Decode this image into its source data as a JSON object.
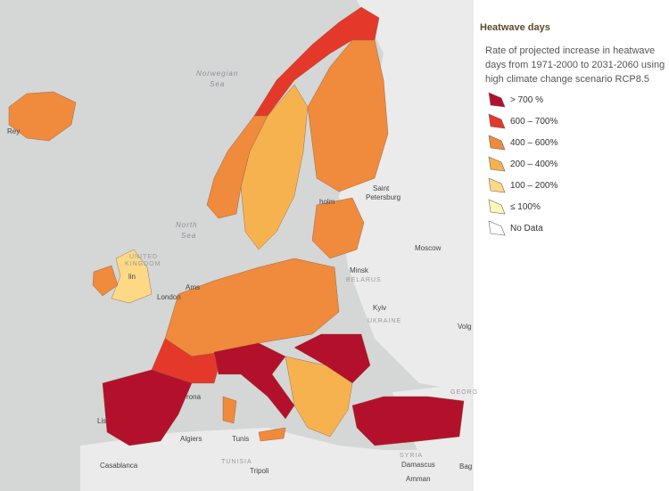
{
  "map": {
    "labels": [
      "Norwegian",
      "Sea",
      "North",
      "Sea",
      "UNITED",
      "KINGDOM",
      "BELARUS",
      "UKRAINE",
      "TUNISIA",
      "SYRIA",
      "GEORG",
      "Rey",
      "Saint",
      "Petersburg",
      "Moscow",
      "Minsk",
      "London",
      "Ams",
      "Kyiv",
      "Volg",
      "Lis",
      "Algiers",
      "Tunis",
      "Tripoli",
      "Casablanca",
      "Damascus",
      "Amman",
      "Bag",
      "holm",
      "lin",
      "rona"
    ]
  },
  "legend": {
    "title": "Heatwave days",
    "description": [
      "Rate of projected increase in heatwave",
      "days from 1971-2000 to 2031-2060 using",
      "high climate change scenario RCP8.5"
    ],
    "items": [
      {
        "label": "> 700 %",
        "color": "#b3102b"
      },
      {
        "label": "600 – 700%",
        "color": "#e4392a"
      },
      {
        "label": "400 – 600%",
        "color": "#f08a3c"
      },
      {
        "label": "200 – 400%",
        "color": "#f7b250"
      },
      {
        "label": "100 – 200%",
        "color": "#fdd985"
      },
      {
        "label": "≤ 100%",
        "color": "#fef6b8"
      },
      {
        "label": "No Data",
        "color": "#ffffff"
      }
    ]
  }
}
